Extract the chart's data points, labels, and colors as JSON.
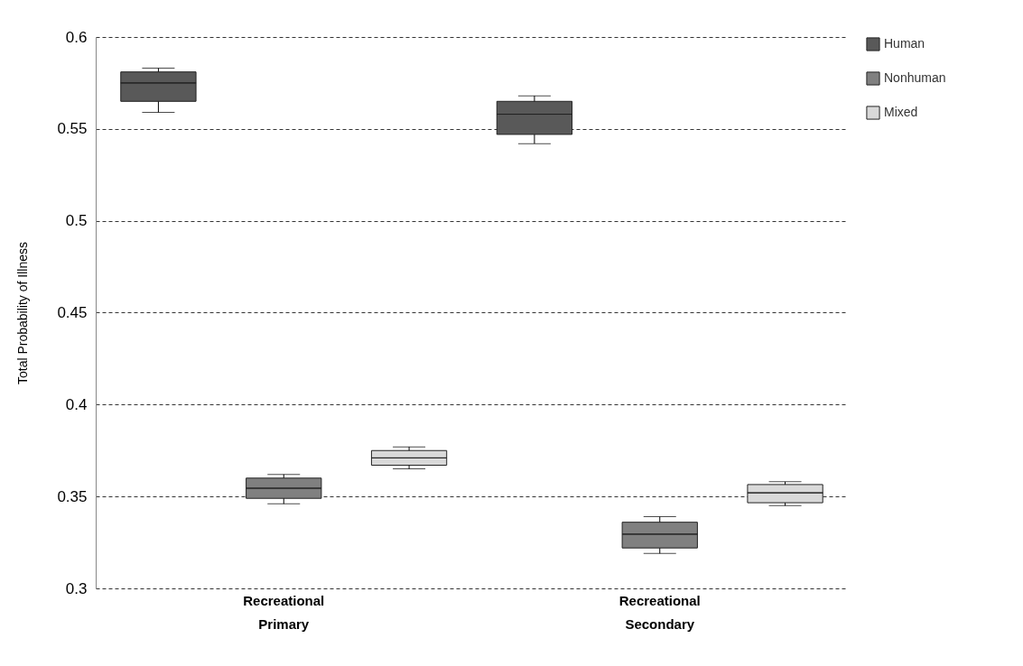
{
  "chart_data": {
    "type": "box",
    "ylabel": "Total Probability of Illness",
    "categories": [
      "Recreational Primary",
      "Recreational Secondary"
    ],
    "ylim": [
      0.3,
      0.6
    ],
    "yticks": [
      0.3,
      0.35,
      0.4,
      0.45,
      0.5,
      0.55,
      0.6
    ],
    "grid": "y",
    "legend": "top right",
    "series": [
      {
        "name": "Human",
        "color": "#595959",
        "boxes": [
          {
            "low": 0.559,
            "q1": 0.565,
            "median": 0.575,
            "q3": 0.581,
            "high": 0.583
          },
          {
            "low": 0.542,
            "q1": 0.547,
            "median": 0.558,
            "q3": 0.565,
            "high": 0.568
          }
        ]
      },
      {
        "name": "Nonhuman",
        "color": "#808080",
        "boxes": [
          {
            "low": 0.346,
            "q1": 0.349,
            "median": 0.3545,
            "q3": 0.36,
            "high": 0.362
          },
          {
            "low": 0.319,
            "q1": 0.322,
            "median": 0.3295,
            "q3": 0.336,
            "high": 0.339
          }
        ]
      },
      {
        "name": "Mixed",
        "color": "#d9d9d9",
        "boxes": [
          {
            "low": 0.365,
            "q1": 0.367,
            "median": 0.371,
            "q3": 0.375,
            "high": 0.377
          },
          {
            "low": 0.345,
            "q1": 0.3466,
            "median": 0.352,
            "q3": 0.3565,
            "high": 0.358
          }
        ]
      }
    ]
  }
}
